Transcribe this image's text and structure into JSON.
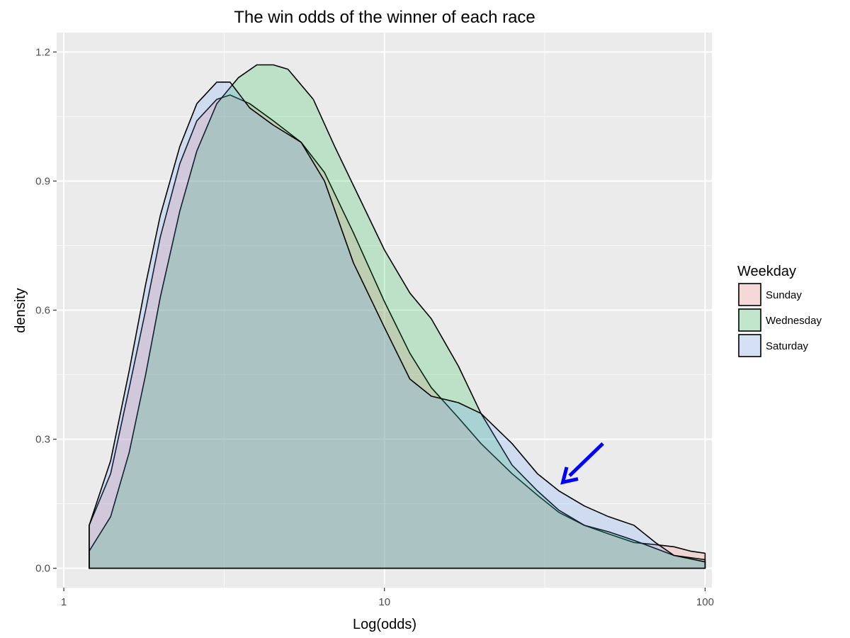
{
  "chart_data": {
    "type": "area",
    "title": "The win odds of the winner of each race",
    "xlabel": "Log(odds)",
    "ylabel": "density",
    "x_scale": "log10",
    "xlim": [
      0.95,
      105
    ],
    "ylim": [
      -0.045,
      1.245
    ],
    "x_ticks": [
      1,
      10,
      100
    ],
    "x_tick_labels": [
      "1",
      "10",
      "100"
    ],
    "y_ticks": [
      0.0,
      0.3,
      0.6,
      0.9,
      1.2
    ],
    "y_tick_labels": [
      "0.0",
      "0.3",
      "0.6",
      "0.9",
      "1.2"
    ],
    "grid": true,
    "legend": {
      "title": "Weekday",
      "position": "right"
    },
    "series": [
      {
        "name": "Sunday",
        "color": "#F8766D",
        "points": [
          [
            1.2,
            0.1
          ],
          [
            1.4,
            0.22
          ],
          [
            1.6,
            0.42
          ],
          [
            1.8,
            0.6
          ],
          [
            2.0,
            0.77
          ],
          [
            2.3,
            0.94
          ],
          [
            2.6,
            1.04
          ],
          [
            3.0,
            1.09
          ],
          [
            3.3,
            1.1
          ],
          [
            3.8,
            1.08
          ],
          [
            4.5,
            1.04
          ],
          [
            5.5,
            0.99
          ],
          [
            6.5,
            0.92
          ],
          [
            8.0,
            0.78
          ],
          [
            10.0,
            0.62
          ],
          [
            12.0,
            0.5
          ],
          [
            14.0,
            0.42
          ],
          [
            17.0,
            0.35
          ],
          [
            20.0,
            0.29
          ],
          [
            25.0,
            0.22
          ],
          [
            30.0,
            0.17
          ],
          [
            35.0,
            0.13
          ],
          [
            42.0,
            0.1
          ],
          [
            50.0,
            0.08
          ],
          [
            60.0,
            0.06
          ],
          [
            70.0,
            0.055
          ],
          [
            80.0,
            0.05
          ],
          [
            90.0,
            0.04
          ],
          [
            100.0,
            0.035
          ]
        ]
      },
      {
        "name": "Wednesday",
        "color": "#00BA38",
        "points": [
          [
            1.2,
            0.04
          ],
          [
            1.4,
            0.12
          ],
          [
            1.6,
            0.27
          ],
          [
            1.8,
            0.45
          ],
          [
            2.0,
            0.63
          ],
          [
            2.3,
            0.83
          ],
          [
            2.6,
            0.97
          ],
          [
            3.0,
            1.08
          ],
          [
            3.5,
            1.14
          ],
          [
            4.0,
            1.17
          ],
          [
            4.5,
            1.17
          ],
          [
            5.0,
            1.16
          ],
          [
            6.0,
            1.09
          ],
          [
            7.0,
            0.98
          ],
          [
            8.0,
            0.89
          ],
          [
            10.0,
            0.74
          ],
          [
            12.0,
            0.64
          ],
          [
            14.0,
            0.58
          ],
          [
            17.0,
            0.47
          ],
          [
            20.0,
            0.36
          ],
          [
            25.0,
            0.24
          ],
          [
            30.0,
            0.18
          ],
          [
            35.0,
            0.135
          ],
          [
            42.0,
            0.1
          ],
          [
            50.0,
            0.085
          ],
          [
            60.0,
            0.065
          ],
          [
            80.0,
            0.03
          ],
          [
            100.0,
            0.02
          ]
        ]
      },
      {
        "name": "Saturday",
        "color": "#619CFF",
        "points": [
          [
            1.2,
            0.1
          ],
          [
            1.4,
            0.25
          ],
          [
            1.6,
            0.46
          ],
          [
            1.8,
            0.66
          ],
          [
            2.0,
            0.82
          ],
          [
            2.3,
            0.98
          ],
          [
            2.6,
            1.08
          ],
          [
            3.0,
            1.13
          ],
          [
            3.3,
            1.13
          ],
          [
            3.8,
            1.07
          ],
          [
            4.5,
            1.03
          ],
          [
            5.5,
            0.99
          ],
          [
            6.5,
            0.9
          ],
          [
            8.0,
            0.71
          ],
          [
            10.0,
            0.56
          ],
          [
            12.0,
            0.44
          ],
          [
            14.0,
            0.4
          ],
          [
            17.0,
            0.385
          ],
          [
            20.0,
            0.36
          ],
          [
            25.0,
            0.29
          ],
          [
            30.0,
            0.22
          ],
          [
            35.0,
            0.18
          ],
          [
            42.0,
            0.145
          ],
          [
            50.0,
            0.12
          ],
          [
            60.0,
            0.1
          ],
          [
            70.0,
            0.06
          ],
          [
            80.0,
            0.03
          ],
          [
            100.0,
            0.015
          ]
        ]
      }
    ],
    "annotations": [
      {
        "type": "arrow",
        "color": "#0000FF",
        "from": [
          48.0,
          0.29
        ],
        "to": [
          36.0,
          0.2
        ]
      }
    ]
  }
}
